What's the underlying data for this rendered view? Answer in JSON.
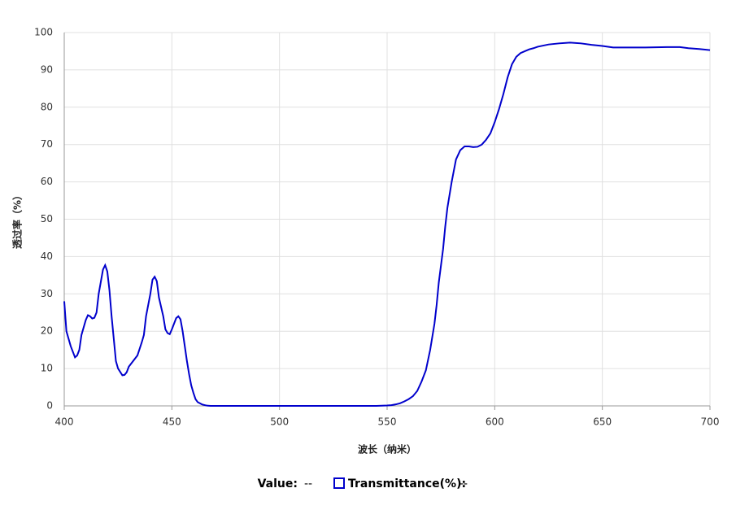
{
  "chart_data": {
    "type": "line",
    "x_label": "波长（纳米）",
    "y_label": "透过率（%）",
    "xlim": [
      400,
      700
    ],
    "xticks": [
      400,
      450,
      500,
      550,
      600,
      650,
      700
    ],
    "ylim": [
      0,
      100
    ],
    "yticks": [
      0,
      10,
      20,
      30,
      40,
      50,
      60,
      70,
      80,
      90,
      100
    ],
    "grid": true,
    "readout": {
      "label": "Value:",
      "value": "--"
    },
    "series": [
      {
        "name": "Transmittance(%):",
        "readout": "--",
        "color": "#0000cc",
        "x": [
          400,
          401,
          403,
          405,
          406,
          407,
          408,
          410,
          411,
          412,
          413,
          414,
          415,
          416,
          418,
          419,
          420,
          421,
          422,
          423,
          424,
          425,
          427,
          428,
          429,
          430,
          432,
          434,
          436,
          437,
          438,
          440,
          441,
          442,
          443,
          444,
          446,
          447,
          448,
          449,
          450,
          451,
          452,
          453,
          454,
          455,
          456,
          457,
          458,
          459,
          460,
          461,
          462,
          464,
          466,
          468,
          470,
          500,
          545,
          550,
          552,
          554,
          556,
          558,
          560,
          562,
          564,
          566,
          568,
          570,
          572,
          573,
          574,
          576,
          577,
          578,
          580,
          582,
          584,
          586,
          588,
          590,
          592,
          594,
          596,
          598,
          600,
          602,
          604,
          606,
          608,
          610,
          612,
          614,
          616,
          618,
          620,
          625,
          630,
          635,
          640,
          645,
          650,
          655,
          660,
          670,
          680,
          686,
          690,
          695,
          700
        ],
        "values": [
          28,
          20,
          16,
          13,
          13.5,
          15,
          19,
          23,
          24.3,
          24,
          23.4,
          23.6,
          25,
          30,
          36.5,
          37.7,
          36,
          31,
          24,
          18,
          12,
          10,
          8.2,
          8.3,
          9,
          10.5,
          12,
          13.5,
          17,
          19,
          24,
          30,
          33.8,
          34.6,
          33.4,
          29,
          24,
          20.5,
          19.5,
          19.2,
          20.5,
          22,
          23.5,
          24,
          23.2,
          20,
          16,
          12,
          8.5,
          5.5,
          3.5,
          1.8,
          1,
          0.4,
          0.1,
          0,
          0,
          0,
          0,
          0.1,
          0.2,
          0.4,
          0.7,
          1.2,
          1.8,
          2.6,
          4,
          6.5,
          9.5,
          15,
          22,
          27,
          33,
          42,
          48,
          53,
          60,
          66,
          68.5,
          69.5,
          69.5,
          69.3,
          69.4,
          70,
          71.3,
          73,
          76,
          79.5,
          83.5,
          88,
          91.5,
          93.5,
          94.5,
          95,
          95.5,
          95.8,
          96.2,
          96.8,
          97.1,
          97.3,
          97.1,
          96.7,
          96.4,
          96,
          96,
          96,
          96.1,
          96.1,
          95.8,
          95.6,
          95.3
        ]
      }
    ]
  }
}
